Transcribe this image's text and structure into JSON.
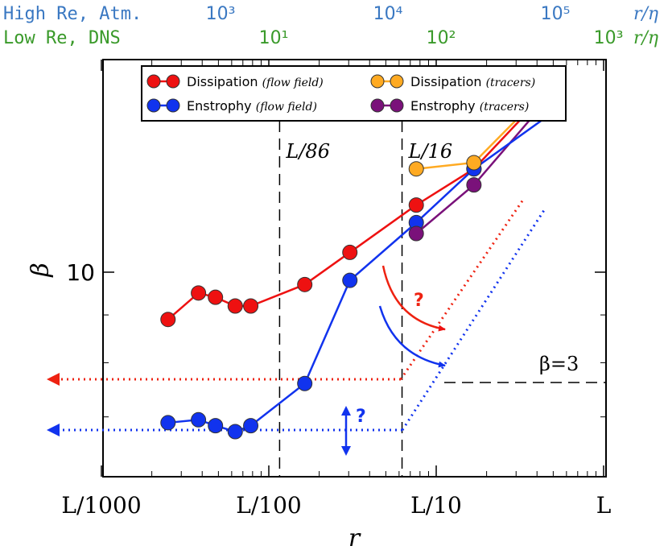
{
  "colors": {
    "atm": "#3a78c2",
    "dns": "#3a9a2a",
    "dissipation_flow": "#ee1111",
    "enstrophy_flow": "#1133ee",
    "dissipation_tracers": "#ffaa22",
    "enstrophy_tracers": "#7a117a"
  },
  "top_axes": {
    "atm_label": "High Re, Atm.",
    "atm_unit": "r/η",
    "atm_ticks": [
      {
        "label": "10³",
        "exp": 3
      },
      {
        "label": "10⁴",
        "exp": 4
      },
      {
        "label": "10⁵",
        "exp": 5
      }
    ],
    "dns_label": "Low Re, DNS",
    "dns_unit": "r/η",
    "dns_ticks": [
      {
        "label": "10¹",
        "exp": 1
      },
      {
        "label": "10²",
        "exp": 2
      },
      {
        "label": "10³",
        "exp": 3
      }
    ]
  },
  "chart_data": {
    "type": "line",
    "xlabel": "r",
    "ylabel": "β",
    "x_scale": "log",
    "y_scale": "log",
    "x_ticks": [
      {
        "label": "L/1000",
        "value": 0.001
      },
      {
        "label": "L/100",
        "value": 0.01
      },
      {
        "label": "L/10",
        "value": 0.1
      },
      {
        "label": "L",
        "value": 1
      }
    ],
    "y_ticks": [
      {
        "label": "10",
        "value": 10
      }
    ],
    "legend_position": "top",
    "series": [
      {
        "name": "Dissipation (flow field)",
        "color_key": "dissipation_flow",
        "x": [
          0.0025,
          0.0038,
          0.0048,
          0.0063,
          0.0078,
          0.0164,
          0.0305,
          0.076,
          0.168,
          0.49
        ],
        "y": [
          8.9,
          9.5,
          9.4,
          9.2,
          9.2,
          9.7,
          10.5,
          11.8,
          12.9,
          15.8
        ]
      },
      {
        "name": "Enstrophy (flow field)",
        "color_key": "enstrophy_flow",
        "x": [
          0.0025,
          0.0038,
          0.0048,
          0.0063,
          0.0078,
          0.0164,
          0.0305,
          0.076,
          0.168,
          0.49
        ],
        "y": [
          6.9,
          6.95,
          6.85,
          6.75,
          6.85,
          7.6,
          9.8,
          11.3,
          12.9,
          14.8
        ]
      },
      {
        "name": "Dissipation (tracers)",
        "color_key": "dissipation_tracers",
        "x": [
          0.076,
          0.168,
          0.49
        ],
        "y": [
          12.9,
          13.1,
          15.9
        ]
      },
      {
        "name": "Enstrophy (tracers)",
        "color_key": "enstrophy_tracers",
        "x": [
          0.076,
          0.168,
          0.49
        ],
        "y": [
          11.0,
          12.4,
          15.5
        ]
      }
    ],
    "annotations": {
      "vlines": [
        {
          "label": "L/86",
          "x": 0.0116
        },
        {
          "label": "L/16",
          "x": 0.0625
        }
      ],
      "hline": {
        "label": "β=3",
        "y": 3
      },
      "question_mark": "?"
    }
  }
}
